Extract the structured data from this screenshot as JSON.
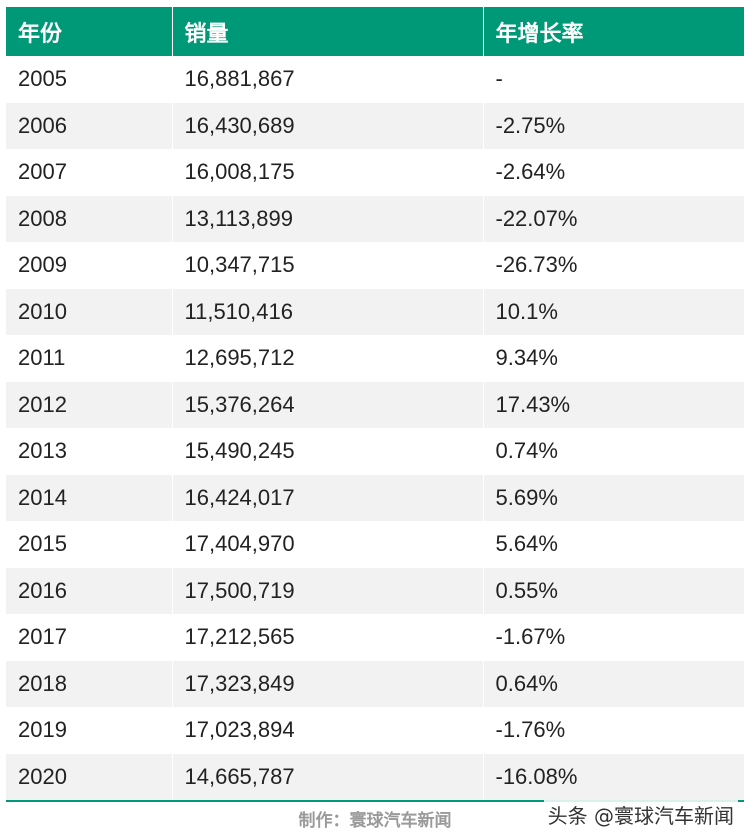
{
  "table": {
    "headers": [
      "年份",
      "销量",
      "年增长率"
    ],
    "rows": [
      [
        "2005",
        "16,881,867",
        "-"
      ],
      [
        "2006",
        "16,430,689",
        "-2.75%"
      ],
      [
        "2007",
        "16,008,175",
        "-2.64%"
      ],
      [
        "2008",
        "13,113,899",
        "-22.07%"
      ],
      [
        "2009",
        "10,347,715",
        "-26.73%"
      ],
      [
        "2010",
        "11,510,416",
        "10.1%"
      ],
      [
        "2011",
        "12,695,712",
        "9.34%"
      ],
      [
        "2012",
        "15,376,264",
        "17.43%"
      ],
      [
        "2013",
        "15,490,245",
        "0.74%"
      ],
      [
        "2014",
        "16,424,017",
        "5.69%"
      ],
      [
        "2015",
        "17,404,970",
        "5.64%"
      ],
      [
        "2016",
        "17,500,719",
        "0.55%"
      ],
      [
        "2017",
        "17,212,565",
        "-1.67%"
      ],
      [
        "2018",
        "17,323,849",
        "0.64%"
      ],
      [
        "2019",
        "17,023,894",
        "-1.76%"
      ],
      [
        "2020",
        "14,665,787",
        "-16.08%"
      ]
    ]
  },
  "footer": {
    "credit": "制作：寰球汽车新闻",
    "watermark": "头条 @寰球汽车新闻"
  },
  "colors": {
    "header_bg": "#009977",
    "stripe": "#f2f2f2"
  }
}
